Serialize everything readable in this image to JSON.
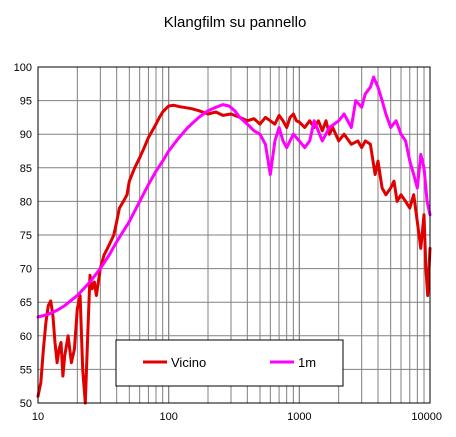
{
  "chart_data": {
    "type": "line",
    "title": "Klangfilm su pannello",
    "xlabel": "",
    "ylabel": "",
    "xscale": "log",
    "xlim": [
      10,
      10000
    ],
    "ylim": [
      50,
      100
    ],
    "xticks": [
      "10",
      "100",
      "1000",
      "10000"
    ],
    "yticks": [
      "50",
      "55",
      "60",
      "65",
      "70",
      "75",
      "80",
      "85",
      "90",
      "95",
      "100"
    ],
    "grid": true,
    "legend_position": "bottom-center",
    "series": [
      {
        "name": "Vicino",
        "color": "#e00000",
        "x": [
          10,
          10.5,
          11,
          11.5,
          12,
          12.5,
          13,
          13.5,
          14,
          14.5,
          15,
          15.5,
          16,
          17,
          18,
          19,
          20,
          21,
          22,
          23,
          24,
          25,
          26,
          27,
          28,
          30,
          32,
          34,
          36,
          38,
          40,
          42,
          45,
          48,
          50,
          55,
          60,
          65,
          70,
          75,
          80,
          85,
          90,
          95,
          100,
          110,
          120,
          130,
          150,
          170,
          200,
          230,
          260,
          300,
          350,
          400,
          450,
          500,
          550,
          600,
          650,
          700,
          750,
          800,
          850,
          900,
          950,
          1000,
          1100,
          1200,
          1300,
          1400,
          1500,
          1600,
          1700,
          1800,
          2000,
          2200,
          2500,
          2800,
          3000,
          3200,
          3500,
          3800,
          4000,
          4300,
          4600,
          5000,
          5300,
          5600,
          6000,
          6500,
          7000,
          7500,
          8000,
          8500,
          9000,
          9300,
          9600,
          10000
        ],
        "values": [
          51,
          53,
          58,
          62,
          64.5,
          65.2,
          63,
          59,
          56,
          58,
          59,
          54,
          57,
          60,
          56,
          58,
          64,
          66,
          55,
          50,
          60,
          69,
          67,
          68,
          66,
          70,
          72,
          73,
          74,
          75,
          77,
          79,
          80,
          81,
          83,
          85,
          86.5,
          88,
          89.5,
          90.5,
          91.5,
          92.5,
          93.3,
          93.8,
          94.2,
          94.3,
          94.1,
          94,
          93.8,
          93.5,
          93,
          93.3,
          92.8,
          93,
          92.5,
          92,
          92.3,
          91.5,
          92.5,
          92,
          91.5,
          92.8,
          92,
          91,
          92.5,
          93,
          92,
          91.8,
          91,
          92,
          91,
          92,
          90.5,
          92,
          90,
          91,
          89,
          90,
          88.5,
          89,
          88,
          89,
          88.5,
          84,
          86,
          82,
          81,
          82,
          83,
          80,
          81,
          80,
          79,
          81,
          77,
          73,
          78,
          70,
          66,
          73
        ]
      },
      {
        "name": "1m",
        "color": "#ff00ff",
        "x": [
          10,
          12,
          14,
          16,
          18,
          20,
          25,
          30,
          35,
          40,
          50,
          60,
          70,
          80,
          90,
          100,
          120,
          140,
          170,
          200,
          230,
          260,
          290,
          320,
          350,
          400,
          450,
          500,
          550,
          600,
          650,
          700,
          750,
          800,
          900,
          1000,
          1100,
          1200,
          1300,
          1500,
          1700,
          2000,
          2200,
          2500,
          2700,
          3000,
          3200,
          3500,
          3700,
          4000,
          4300,
          4600,
          5000,
          5500,
          6000,
          6500,
          7000,
          7500,
          8000,
          8500,
          9000,
          9500,
          10000
        ],
        "values": [
          62.8,
          63.2,
          63.8,
          64.5,
          65.3,
          66,
          68,
          70,
          72,
          74,
          77,
          80,
          82.5,
          84.5,
          86,
          87.5,
          89.5,
          91,
          92.5,
          93.5,
          94,
          94.4,
          94.2,
          93.5,
          92.5,
          91.5,
          90.5,
          90,
          88.5,
          84,
          89,
          91,
          89,
          88,
          90,
          89,
          88,
          89,
          92,
          89,
          91,
          92,
          93,
          91,
          95,
          94,
          96,
          97,
          98.5,
          97,
          95,
          93,
          91,
          92,
          90,
          89,
          86,
          84,
          82,
          87,
          85,
          80,
          78
        ]
      }
    ]
  }
}
